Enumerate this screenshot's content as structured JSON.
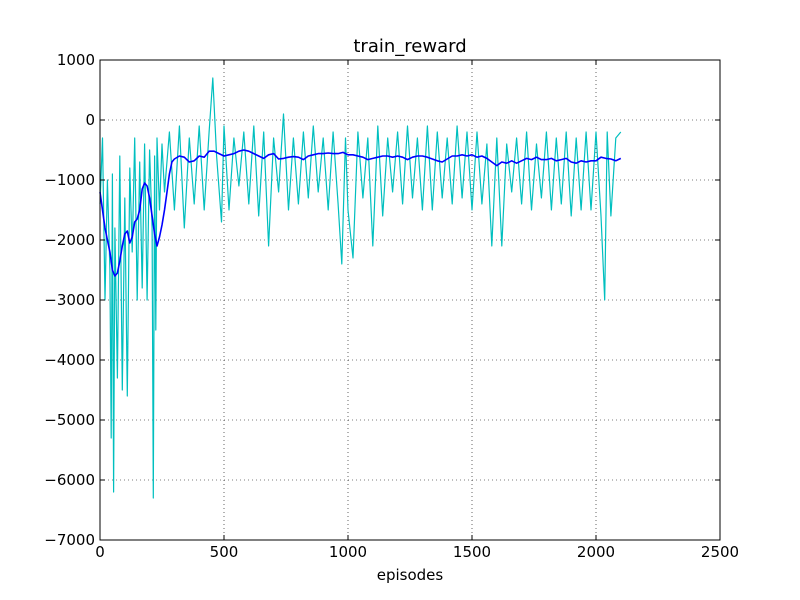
{
  "chart_data": {
    "type": "line",
    "title": "train_reward",
    "xlabel": "episodes",
    "ylabel": "",
    "xlim": [
      0,
      2500
    ],
    "ylim": [
      -7000,
      1000
    ],
    "xticks": [
      0,
      500,
      1000,
      1500,
      2000,
      2500
    ],
    "xtick_labels": [
      "0",
      "500",
      "1000",
      "1500",
      "2000",
      "2500"
    ],
    "yticks": [
      1000,
      0,
      -1000,
      -2000,
      -3000,
      -4000,
      -5000,
      -6000,
      -7000
    ],
    "ytick_labels": [
      "1000",
      "0",
      "−1000",
      "−2000",
      "−3000",
      "−4000",
      "−5000",
      "−6000",
      "−7000"
    ],
    "grid": true,
    "series": [
      {
        "color": "#00bfbf",
        "description_kind": "raw",
        "x": [
          0,
          10,
          20,
          30,
          40,
          45,
          50,
          55,
          60,
          70,
          80,
          90,
          100,
          110,
          120,
          130,
          140,
          150,
          160,
          170,
          180,
          190,
          200,
          210,
          215,
          220,
          225,
          230,
          240,
          250,
          260,
          280,
          300,
          320,
          340,
          360,
          380,
          400,
          420,
          440,
          455,
          470,
          490,
          500,
          520,
          540,
          560,
          580,
          600,
          620,
          640,
          660,
          680,
          700,
          720,
          740,
          760,
          780,
          800,
          820,
          840,
          860,
          880,
          900,
          920,
          940,
          960,
          975,
          990,
          1000,
          1020,
          1040,
          1060,
          1080,
          1100,
          1120,
          1140,
          1160,
          1180,
          1200,
          1220,
          1240,
          1260,
          1280,
          1300,
          1320,
          1340,
          1360,
          1380,
          1400,
          1420,
          1440,
          1460,
          1480,
          1500,
          1520,
          1540,
          1560,
          1580,
          1600,
          1620,
          1640,
          1660,
          1680,
          1700,
          1720,
          1740,
          1760,
          1780,
          1800,
          1820,
          1840,
          1860,
          1880,
          1900,
          1920,
          1940,
          1960,
          1980,
          2000,
          2020,
          2035,
          2045,
          2060,
          2080,
          2100
        ],
        "y": [
          -1400,
          -300,
          -3000,
          -1000,
          -2500,
          -5300,
          -900,
          -6200,
          -1800,
          -4300,
          -600,
          -4500,
          -1300,
          -4600,
          -800,
          -2200,
          -300,
          -3000,
          -700,
          -2800,
          -400,
          -3000,
          -500,
          -1800,
          -6300,
          -600,
          -3500,
          -300,
          -1500,
          -400,
          -1200,
          -200,
          -1500,
          -100,
          -1800,
          -300,
          -1400,
          -100,
          -1500,
          -200,
          700,
          -600,
          -1700,
          -100,
          -1500,
          -300,
          -1100,
          -200,
          -1400,
          -100,
          -1600,
          -200,
          -2100,
          -300,
          -1200,
          100,
          -1500,
          -300,
          -1400,
          -200,
          -1300,
          -100,
          -1200,
          -300,
          -1500,
          -200,
          -1400,
          -2400,
          -300,
          -1500,
          -2300,
          -200,
          -1300,
          -300,
          -2100,
          -100,
          -1600,
          -300,
          -1200,
          -200,
          -1400,
          -100,
          -1300,
          -300,
          -1500,
          -100,
          -1500,
          -200,
          -1300,
          -300,
          -1400,
          -100,
          -1300,
          -200,
          -1500,
          -200,
          -1400,
          -400,
          -2100,
          -300,
          -2100,
          -400,
          -1200,
          -300,
          -1400,
          -200,
          -1500,
          -400,
          -1300,
          -200,
          -1500,
          -300,
          -1400,
          -200,
          -1600,
          -300,
          -1500,
          -200,
          -1500,
          -200,
          -1600,
          -3000,
          -200,
          -1600,
          -300,
          -200
        ]
      },
      {
        "color": "#0000ff",
        "description_kind": "moving average",
        "x": [
          0,
          10,
          20,
          30,
          40,
          50,
          60,
          70,
          80,
          90,
          100,
          110,
          120,
          130,
          140,
          150,
          160,
          170,
          180,
          190,
          200,
          210,
          220,
          230,
          240,
          250,
          260,
          270,
          280,
          290,
          300,
          320,
          340,
          360,
          380,
          400,
          420,
          440,
          460,
          480,
          500,
          520,
          540,
          560,
          580,
          600,
          620,
          640,
          660,
          680,
          700,
          720,
          740,
          760,
          780,
          800,
          820,
          840,
          860,
          880,
          900,
          920,
          940,
          960,
          980,
          1000,
          1020,
          1040,
          1060,
          1080,
          1100,
          1120,
          1140,
          1160,
          1180,
          1200,
          1220,
          1240,
          1260,
          1280,
          1300,
          1320,
          1340,
          1360,
          1380,
          1400,
          1420,
          1440,
          1460,
          1480,
          1500,
          1520,
          1540,
          1560,
          1580,
          1600,
          1620,
          1640,
          1660,
          1680,
          1700,
          1720,
          1740,
          1760,
          1780,
          1800,
          1820,
          1840,
          1860,
          1880,
          1900,
          1920,
          1940,
          1960,
          1980,
          2000,
          2020,
          2040,
          2060,
          2080,
          2100
        ],
        "y": [
          -1200,
          -1500,
          -1800,
          -2000,
          -2200,
          -2500,
          -2600,
          -2550,
          -2350,
          -2100,
          -1900,
          -1850,
          -2050,
          -1950,
          -1700,
          -1650,
          -1500,
          -1150,
          -1050,
          -1100,
          -1300,
          -1600,
          -1900,
          -2100,
          -1950,
          -1750,
          -1500,
          -1200,
          -900,
          -700,
          -650,
          -600,
          -620,
          -700,
          -680,
          -600,
          -620,
          -520,
          -520,
          -560,
          -600,
          -580,
          -560,
          -520,
          -500,
          -520,
          -560,
          -600,
          -640,
          -580,
          -560,
          -650,
          -640,
          -620,
          -610,
          -620,
          -660,
          -600,
          -580,
          -560,
          -560,
          -550,
          -560,
          -560,
          -540,
          -580,
          -580,
          -600,
          -620,
          -660,
          -640,
          -620,
          -600,
          -600,
          -620,
          -600,
          -620,
          -660,
          -620,
          -600,
          -600,
          -620,
          -650,
          -680,
          -700,
          -650,
          -600,
          -600,
          -580,
          -600,
          -580,
          -620,
          -600,
          -640,
          -700,
          -760,
          -700,
          -720,
          -680,
          -720,
          -680,
          -640,
          -660,
          -620,
          -660,
          -660,
          -640,
          -680,
          -660,
          -640,
          -700,
          -720,
          -680,
          -700,
          -680,
          -680,
          -620,
          -640,
          -650,
          -680,
          -640
        ]
      }
    ]
  }
}
